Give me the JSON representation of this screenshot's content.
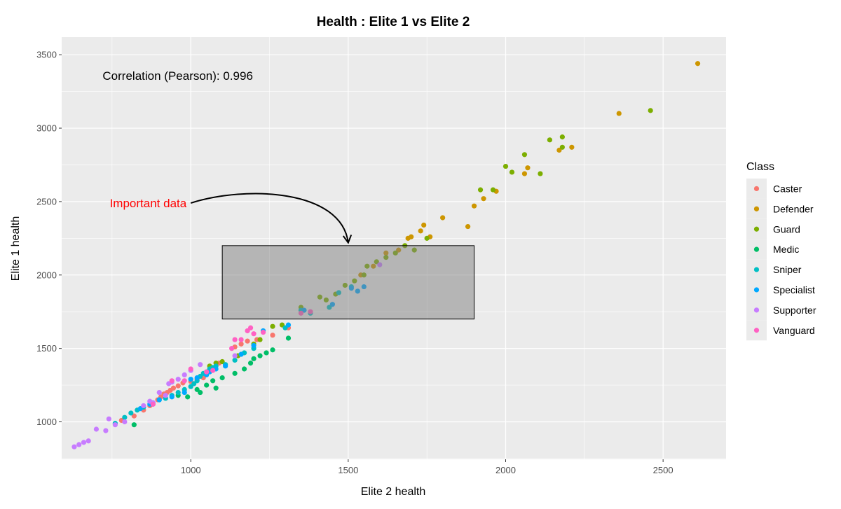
{
  "chart_data": {
    "type": "scatter",
    "title": "Health : Elite 1 vs Elite 2",
    "xlabel": "Elite 2 health",
    "ylabel": "Elite 1 health",
    "xlim": [
      590,
      2700
    ],
    "ylim": [
      745,
      3620
    ],
    "xticks": [
      1000,
      1500,
      2000,
      2500
    ],
    "yticks": [
      1000,
      1500,
      2000,
      2500,
      3000,
      3500
    ],
    "grid": true,
    "legend": {
      "title": "Class",
      "position": "right"
    },
    "annotations": {
      "correlation_text": "Correlation (Pearson):  0.996",
      "important_text": "Important data",
      "rect": {
        "x0": 1100,
        "x1": 1900,
        "y0": 1700,
        "y1": 2200
      },
      "arrow": {
        "from": [
          1000,
          2490
        ],
        "to": [
          1500,
          2220
        ]
      }
    },
    "series": [
      {
        "name": "Caster",
        "color": "#F8766D",
        "points": [
          [
            780,
            1010
          ],
          [
            820,
            1040
          ],
          [
            850,
            1080
          ],
          [
            870,
            1110
          ],
          [
            880,
            1120
          ],
          [
            895,
            1150
          ],
          [
            905,
            1170
          ],
          [
            915,
            1190
          ],
          [
            925,
            1200
          ],
          [
            935,
            1215
          ],
          [
            945,
            1230
          ],
          [
            960,
            1245
          ],
          [
            975,
            1265
          ],
          [
            1000,
            1275
          ],
          [
            1020,
            1290
          ],
          [
            1040,
            1300
          ],
          [
            1090,
            1400
          ],
          [
            1140,
            1510
          ],
          [
            1160,
            1530
          ],
          [
            1180,
            1550
          ],
          [
            1210,
            1560
          ],
          [
            1260,
            1590
          ],
          [
            1310,
            1640
          ]
        ]
      },
      {
        "name": "Defender",
        "color": "#CD9600",
        "points": [
          [
            1540,
            2000
          ],
          [
            1580,
            2060
          ],
          [
            1620,
            2150
          ],
          [
            1660,
            2170
          ],
          [
            1700,
            2260
          ],
          [
            1730,
            2300
          ],
          [
            1760,
            2260
          ],
          [
            1800,
            2390
          ],
          [
            1880,
            2330
          ],
          [
            1900,
            2470
          ],
          [
            1930,
            2520
          ],
          [
            1970,
            2570
          ],
          [
            2060,
            2690
          ],
          [
            2070,
            2730
          ],
          [
            2170,
            2850
          ],
          [
            2210,
            2870
          ],
          [
            2360,
            3100
          ],
          [
            2610,
            3440
          ],
          [
            1740,
            2340
          ],
          [
            1690,
            2250
          ]
        ]
      },
      {
        "name": "Guard",
        "color": "#7CAE00",
        "points": [
          [
            1060,
            1380
          ],
          [
            1080,
            1400
          ],
          [
            1100,
            1410
          ],
          [
            1150,
            1450
          ],
          [
            1200,
            1530
          ],
          [
            1220,
            1560
          ],
          [
            1260,
            1650
          ],
          [
            1290,
            1660
          ],
          [
            1350,
            1780
          ],
          [
            1410,
            1850
          ],
          [
            1430,
            1830
          ],
          [
            1460,
            1870
          ],
          [
            1490,
            1930
          ],
          [
            1520,
            1960
          ],
          [
            1550,
            2000
          ],
          [
            1560,
            2060
          ],
          [
            1590,
            2090
          ],
          [
            1620,
            2120
          ],
          [
            1650,
            2150
          ],
          [
            1680,
            2200
          ],
          [
            1710,
            2170
          ],
          [
            1750,
            2250
          ],
          [
            1920,
            2580
          ],
          [
            1960,
            2580
          ],
          [
            2000,
            2740
          ],
          [
            2020,
            2700
          ],
          [
            2060,
            2820
          ],
          [
            2110,
            2690
          ],
          [
            2140,
            2920
          ],
          [
            2180,
            2940
          ],
          [
            2460,
            3120
          ],
          [
            2180,
            2870
          ]
        ]
      },
      {
        "name": "Medic",
        "color": "#00BE67",
        "points": [
          [
            820,
            980
          ],
          [
            960,
            1180
          ],
          [
            990,
            1170
          ],
          [
            1030,
            1200
          ],
          [
            1050,
            1250
          ],
          [
            1070,
            1280
          ],
          [
            1100,
            1300
          ],
          [
            1140,
            1330
          ],
          [
            1170,
            1360
          ],
          [
            1190,
            1400
          ],
          [
            1200,
            1430
          ],
          [
            1220,
            1450
          ],
          [
            1240,
            1470
          ],
          [
            1260,
            1490
          ],
          [
            1310,
            1570
          ],
          [
            1080,
            1230
          ],
          [
            1020,
            1220
          ]
        ]
      },
      {
        "name": "Sniper",
        "color": "#00BFC4",
        "points": [
          [
            760,
            990
          ],
          [
            790,
            1030
          ],
          [
            810,
            1060
          ],
          [
            830,
            1080
          ],
          [
            850,
            1100
          ],
          [
            880,
            1130
          ],
          [
            900,
            1150
          ],
          [
            920,
            1160
          ],
          [
            940,
            1180
          ],
          [
            960,
            1200
          ],
          [
            980,
            1220
          ],
          [
            1000,
            1240
          ],
          [
            1010,
            1260
          ],
          [
            1020,
            1280
          ],
          [
            1030,
            1310
          ],
          [
            1040,
            1330
          ],
          [
            1050,
            1340
          ],
          [
            1060,
            1360
          ],
          [
            1070,
            1370
          ],
          [
            1080,
            1380
          ],
          [
            1110,
            1390
          ],
          [
            1140,
            1420
          ],
          [
            1170,
            1470
          ],
          [
            1200,
            1500
          ],
          [
            1300,
            1640
          ],
          [
            1350,
            1760
          ],
          [
            1380,
            1740
          ],
          [
            1440,
            1780
          ],
          [
            1470,
            1880
          ],
          [
            1510,
            1920
          ]
        ]
      },
      {
        "name": "Specialist",
        "color": "#00A9FF",
        "points": [
          [
            840,
            1090
          ],
          [
            870,
            1120
          ],
          [
            900,
            1150
          ],
          [
            940,
            1170
          ],
          [
            980,
            1200
          ],
          [
            1000,
            1290
          ],
          [
            1020,
            1300
          ],
          [
            1050,
            1320
          ],
          [
            1060,
            1340
          ],
          [
            1080,
            1360
          ],
          [
            1110,
            1380
          ],
          [
            1160,
            1460
          ],
          [
            1200,
            1520
          ],
          [
            1230,
            1620
          ],
          [
            1310,
            1660
          ],
          [
            1450,
            1800
          ],
          [
            1510,
            1910
          ],
          [
            1530,
            1890
          ],
          [
            1550,
            1920
          ],
          [
            1360,
            1760
          ]
        ]
      },
      {
        "name": "Supporter",
        "color": "#C77CFF",
        "points": [
          [
            630,
            830
          ],
          [
            645,
            845
          ],
          [
            660,
            860
          ],
          [
            675,
            870
          ],
          [
            700,
            950
          ],
          [
            730,
            940
          ],
          [
            760,
            980
          ],
          [
            790,
            1000
          ],
          [
            850,
            1110
          ],
          [
            880,
            1130
          ],
          [
            900,
            1200
          ],
          [
            930,
            1260
          ],
          [
            940,
            1270
          ],
          [
            960,
            1290
          ],
          [
            980,
            1320
          ],
          [
            1000,
            1350
          ],
          [
            1030,
            1390
          ],
          [
            1140,
            1450
          ],
          [
            1600,
            2070
          ],
          [
            740,
            1020
          ],
          [
            870,
            1140
          ],
          [
            920,
            1180
          ]
        ]
      },
      {
        "name": "Vanguard",
        "color": "#FF61C3",
        "points": [
          [
            880,
            1120
          ],
          [
            940,
            1280
          ],
          [
            980,
            1280
          ],
          [
            1000,
            1360
          ],
          [
            1050,
            1340
          ],
          [
            1070,
            1350
          ],
          [
            1130,
            1500
          ],
          [
            1160,
            1560
          ],
          [
            1180,
            1620
          ],
          [
            1190,
            1640
          ],
          [
            1200,
            1600
          ],
          [
            1230,
            1610
          ],
          [
            1140,
            1560
          ],
          [
            1350,
            1740
          ],
          [
            1380,
            1750
          ]
        ]
      }
    ]
  }
}
